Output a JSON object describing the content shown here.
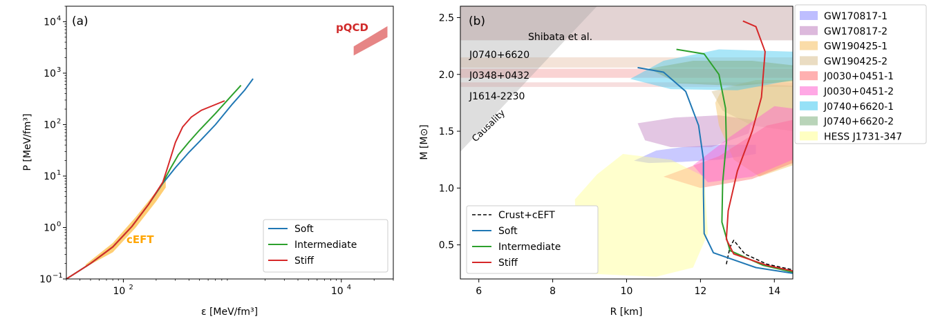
{
  "chart_data": [
    {
      "panel": "(a)",
      "type": "line",
      "xlabel": "ε [MeV/fm³]",
      "ylabel": "P [MeV/fm³]",
      "xscale": "log",
      "yscale": "log",
      "xlim": [
        30,
        30000
      ],
      "ylim": [
        0.1,
        20000
      ],
      "x_ticks": [
        {
          "v": 100,
          "b": "10",
          "e": "2"
        },
        {
          "v": 10000,
          "b": "10",
          "e": "4"
        }
      ],
      "y_ticks": [
        {
          "v": 0.1,
          "b": "10",
          "e": "−1"
        },
        {
          "v": 1,
          "b": "10",
          "e": "0"
        },
        {
          "v": 10,
          "b": "10",
          "e": "1"
        },
        {
          "v": 100,
          "b": "10",
          "e": "2"
        },
        {
          "v": 1000,
          "b": "10",
          "e": "3"
        },
        {
          "v": 10000,
          "b": "10",
          "e": "4"
        }
      ],
      "grid": false,
      "legend_position": "lower-right",
      "bands": [
        {
          "label": "cEFT",
          "color": "#ffa500",
          "upper": [
            [
              45,
              0.19
            ],
            [
              80,
              0.5
            ],
            [
              130,
              1.6
            ],
            [
              200,
              5
            ],
            [
              245,
              9.5
            ]
          ],
          "lower": [
            [
              245,
              6
            ],
            [
              200,
              3.2
            ],
            [
              130,
              1.0
            ],
            [
              80,
              0.33
            ],
            [
              45,
              0.17
            ]
          ]
        },
        {
          "label": "pQCD",
          "color": "#e06666",
          "polygon": [
            [
              13000,
              2200
            ],
            [
              13000,
              3300
            ],
            [
              26500,
              8200
            ],
            [
              26500,
              5000
            ]
          ]
        }
      ],
      "series": [
        {
          "name": "Soft",
          "color": "#1f77b4",
          "x": [
            30,
            50,
            80,
            120,
            170,
            230,
            300,
            400,
            500,
            700,
            1000,
            1300,
            1550
          ],
          "y": [
            0.1,
            0.2,
            0.42,
            1.05,
            2.8,
            7.2,
            14.5,
            29,
            47,
            100,
            250,
            470,
            780
          ]
        },
        {
          "name": "Intermediate",
          "color": "#2ca02c",
          "x": [
            30,
            50,
            80,
            120,
            170,
            230,
            270,
            320,
            400,
            500,
            700,
            1000,
            1200
          ],
          "y": [
            0.1,
            0.2,
            0.42,
            1.05,
            2.8,
            7.4,
            14,
            26,
            46,
            78,
            165,
            380,
            580
          ]
        },
        {
          "name": "Stiff",
          "color": "#d62728",
          "x": [
            30,
            50,
            80,
            120,
            170,
            230,
            250,
            270,
            300,
            350,
            420,
            520,
            650,
            850
          ],
          "y": [
            0.1,
            0.2,
            0.42,
            1.05,
            2.8,
            7.6,
            13,
            22,
            45,
            90,
            140,
            190,
            230,
            290
          ]
        }
      ]
    },
    {
      "panel": "(b)",
      "type": "line",
      "xlabel": "R [km]",
      "ylabel": "M [M⊙]",
      "xlim": [
        5.5,
        14.5
      ],
      "ylim": [
        0.2,
        2.6
      ],
      "x_ticks": [
        6,
        8,
        10,
        12,
        14
      ],
      "y_ticks": [
        "0.5",
        "1.0",
        "1.5",
        "2.0",
        "2.5"
      ],
      "grid": false,
      "legend_position": "lower-left",
      "annotations": {
        "shibata": "Shibata et al.",
        "causality": "Causality",
        "j0740": "J0740+6620",
        "j0348": "J0348+0432",
        "j1614": "J1614-2230"
      },
      "mass_bands": [
        {
          "label": "Shibata et al.",
          "color": "#b08080",
          "lo": 2.3,
          "hi": 2.6
        },
        {
          "label": "J0740+6620",
          "color": "#e0b090",
          "lo": 2.06,
          "hi": 2.15
        },
        {
          "label": "J0348+0432",
          "color": "#f08080",
          "lo": 1.97,
          "hi": 2.05
        },
        {
          "label": "J1614-2230",
          "color": "#e8a0a0",
          "lo": 1.89,
          "hi": 1.93
        }
      ],
      "regions": [
        {
          "name": "GW170817-1",
          "color": "#8888ff",
          "poly": [
            [
              10.2,
              1.24
            ],
            [
              10.8,
              1.33
            ],
            [
              11.5,
              1.36
            ],
            [
              12.5,
              1.38
            ],
            [
              13.5,
              1.38
            ],
            [
              13.5,
              1.3
            ],
            [
              12.5,
              1.25
            ],
            [
              11.5,
              1.23
            ],
            [
              10.6,
              1.22
            ]
          ]
        },
        {
          "name": "GW170817-2",
          "color": "#c080c0",
          "poly": [
            [
              10.3,
              1.57
            ],
            [
              11.3,
              1.62
            ],
            [
              12.5,
              1.64
            ],
            [
              13.4,
              1.6
            ],
            [
              13.3,
              1.48
            ],
            [
              12.3,
              1.36
            ],
            [
              11.2,
              1.36
            ],
            [
              10.5,
              1.42
            ]
          ]
        },
        {
          "name": "GW190425-1",
          "color": "#f5c060",
          "poly": [
            [
              12.6,
              1.88
            ],
            [
              13.5,
              1.95
            ],
            [
              14.5,
              1.95
            ],
            [
              14.5,
              1.2
            ],
            [
              13.6,
              1.1
            ],
            [
              12.9,
              1.25
            ],
            [
              12.5,
              1.55
            ],
            [
              12.4,
              1.75
            ]
          ]
        },
        {
          "name": "GW190425-2",
          "color": "#d8c090",
          "poly": [
            [
              12.3,
              1.85
            ],
            [
              13.3,
              1.92
            ],
            [
              14.5,
              1.9
            ],
            [
              14.5,
              1.5
            ],
            [
              13.4,
              1.55
            ],
            [
              12.6,
              1.68
            ]
          ]
        },
        {
          "name": "J0030+0451-1",
          "color": "#ff7070",
          "poly": [
            [
              11.0,
              1.1
            ],
            [
              12.5,
              1.28
            ],
            [
              13.8,
              1.55
            ],
            [
              14.5,
              1.6
            ],
            [
              14.5,
              1.22
            ],
            [
              13.4,
              1.08
            ],
            [
              12.0,
              1.0
            ]
          ]
        },
        {
          "name": "J0030+0451-2",
          "color": "#ff60d0",
          "poly": [
            [
              11.8,
              1.2
            ],
            [
              12.8,
              1.45
            ],
            [
              14.0,
              1.72
            ],
            [
              14.5,
              1.7
            ],
            [
              14.5,
              1.25
            ],
            [
              13.4,
              1.1
            ],
            [
              12.2,
              1.05
            ]
          ]
        },
        {
          "name": "J0740+6620-1",
          "color": "#40c8f0",
          "poly": [
            [
              10.1,
              1.96
            ],
            [
              11.0,
              2.12
            ],
            [
              12.5,
              2.22
            ],
            [
              14.5,
              2.2
            ],
            [
              14.5,
              1.95
            ],
            [
              13.0,
              1.86
            ],
            [
              11.2,
              1.87
            ]
          ]
        },
        {
          "name": "J0740+6620-2",
          "color": "#80b080",
          "poly": [
            [
              10.6,
              2.05
            ],
            [
              11.8,
              2.12
            ],
            [
              13.4,
              2.12
            ],
            [
              14.5,
              2.08
            ],
            [
              14.5,
              1.94
            ],
            [
              13.0,
              1.9
            ],
            [
              11.4,
              1.92
            ]
          ]
        },
        {
          "name": "HESS J1731-347",
          "color": "#ffff90",
          "poly": [
            [
              9.9,
              1.3
            ],
            [
              11.2,
              1.25
            ],
            [
              12.1,
              1.1
            ],
            [
              12.2,
              0.6
            ],
            [
              11.8,
              0.3
            ],
            [
              10.8,
              0.22
            ],
            [
              8.7,
              0.25
            ],
            [
              8.6,
              0.9
            ],
            [
              9.2,
              1.12
            ]
          ]
        }
      ],
      "series": [
        {
          "name": "Crust+cEFT",
          "color": "#000000",
          "dashed": true,
          "points": [
            [
              12.7,
              0.33
            ],
            [
              12.8,
              0.48
            ],
            [
              12.9,
              0.54
            ],
            [
              13.2,
              0.42
            ],
            [
              13.8,
              0.33
            ],
            [
              14.5,
              0.28
            ]
          ]
        },
        {
          "name": "Soft",
          "color": "#1f77b4",
          "points": [
            [
              10.3,
              2.06
            ],
            [
              11.0,
              2.02
            ],
            [
              11.6,
              1.85
            ],
            [
              11.95,
              1.55
            ],
            [
              12.08,
              1.25
            ],
            [
              12.08,
              0.95
            ],
            [
              12.1,
              0.6
            ],
            [
              12.35,
              0.43
            ],
            [
              13.5,
              0.3
            ],
            [
              14.5,
              0.25
            ]
          ]
        },
        {
          "name": "Intermediate",
          "color": "#2ca02c",
          "points": [
            [
              11.35,
              2.22
            ],
            [
              12.1,
              2.18
            ],
            [
              12.5,
              2.0
            ],
            [
              12.68,
              1.7
            ],
            [
              12.7,
              1.4
            ],
            [
              12.6,
              1.05
            ],
            [
              12.58,
              0.7
            ],
            [
              12.8,
              0.45
            ],
            [
              13.7,
              0.32
            ],
            [
              14.5,
              0.26
            ]
          ]
        },
        {
          "name": "Stiff",
          "color": "#d62728",
          "points": [
            [
              13.15,
              2.47
            ],
            [
              13.5,
              2.42
            ],
            [
              13.75,
              2.2
            ],
            [
              13.65,
              1.8
            ],
            [
              13.4,
              1.5
            ],
            [
              13.0,
              1.15
            ],
            [
              12.75,
              0.8
            ],
            [
              12.7,
              0.55
            ],
            [
              12.9,
              0.42
            ],
            [
              13.8,
              0.32
            ],
            [
              14.5,
              0.27
            ]
          ]
        }
      ]
    }
  ],
  "legend_right": [
    {
      "label": "GW170817-1",
      "color": "#8888ff"
    },
    {
      "label": "GW170817-2",
      "color": "#c080c0"
    },
    {
      "label": "GW190425-1",
      "color": "#f5c060"
    },
    {
      "label": "GW190425-2",
      "color": "#d8c090"
    },
    {
      "label": "J0030+0451-1",
      "color": "#ff7070"
    },
    {
      "label": "J0030+0451-2",
      "color": "#ff60d0"
    },
    {
      "label": "J0740+6620-1",
      "color": "#40c8f0"
    },
    {
      "label": "J0740+6620-2",
      "color": "#80b080"
    },
    {
      "label": "HESS J1731-347",
      "color": "#ffff90"
    }
  ]
}
